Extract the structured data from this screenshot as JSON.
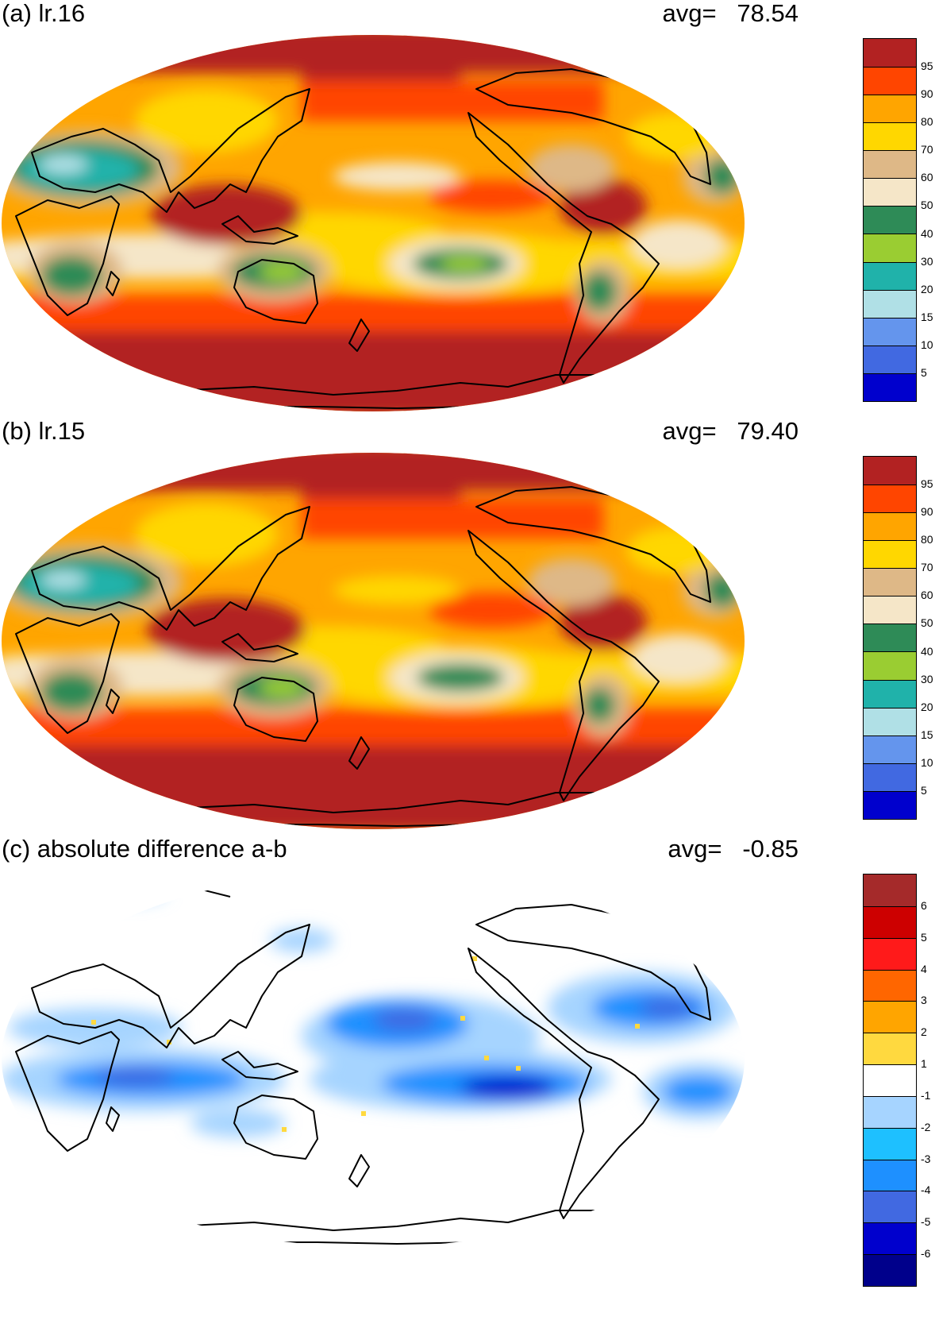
{
  "panels": [
    {
      "title": "(a) lr.16",
      "avg_label": "avg=",
      "avg_value": "78.54",
      "colorbar": {
        "colors": [
          "#b22222",
          "#ff4500",
          "#ffa500",
          "#ffd700",
          "#deb887",
          "#f5e6c8",
          "#2e8b57",
          "#9acd32",
          "#20b2aa",
          "#b0e0e6",
          "#6495ed",
          "#4169e1",
          "#0000cd"
        ],
        "labels": [
          "95",
          "90",
          "80",
          "70",
          "60",
          "50",
          "40",
          "30",
          "20",
          "15",
          "10",
          "5"
        ]
      }
    },
    {
      "title": "(b) lr.15",
      "avg_label": "avg=",
      "avg_value": "79.40",
      "colorbar": {
        "colors": [
          "#b22222",
          "#ff4500",
          "#ffa500",
          "#ffd700",
          "#deb887",
          "#f5e6c8",
          "#2e8b57",
          "#9acd32",
          "#20b2aa",
          "#b0e0e6",
          "#6495ed",
          "#4169e1",
          "#0000cd"
        ],
        "labels": [
          "95",
          "90",
          "80",
          "70",
          "60",
          "50",
          "40",
          "30",
          "20",
          "15",
          "10",
          "5"
        ]
      }
    },
    {
      "title": "(c) absolute difference a-b",
      "avg_label": "avg=",
      "avg_value": "-0.85",
      "colorbar": {
        "colors": [
          "#a52a2a",
          "#cd0000",
          "#ff1a1a",
          "#ff6600",
          "#ffa500",
          "#ffd93f",
          "#ffffff",
          "#a6d4ff",
          "#1ec0ff",
          "#1e90ff",
          "#4169e1",
          "#0000cd",
          "#00008b"
        ],
        "labels": [
          "6",
          "5",
          "4",
          "3",
          "2",
          "1",
          "-1",
          "-2",
          "-3",
          "-4",
          "-5",
          "-6"
        ]
      }
    }
  ]
}
